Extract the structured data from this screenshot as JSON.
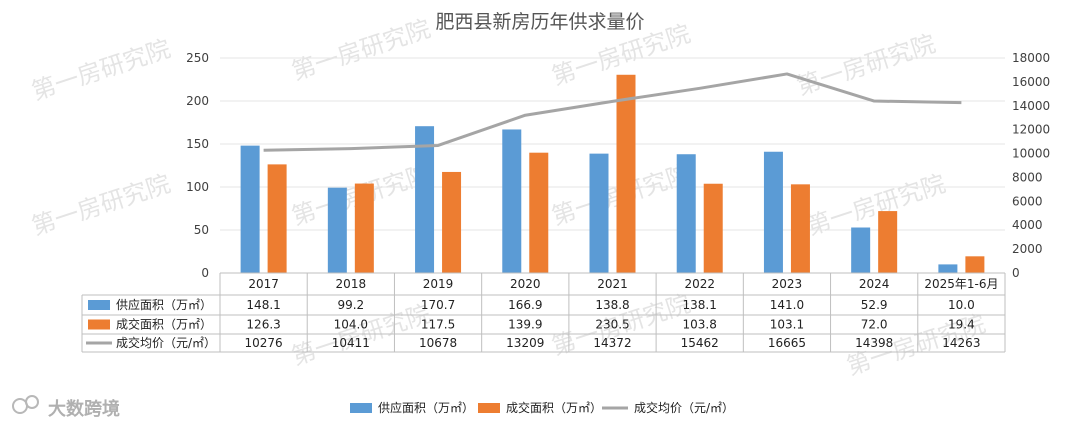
{
  "watermark": "第一房研究院",
  "brand": "大数跨境",
  "chart_data": {
    "type": "bar",
    "title": "肥西县新房历年供求量价",
    "categories": [
      "2017",
      "2018",
      "2019",
      "2020",
      "2021",
      "2022",
      "2023",
      "2024",
      "2025年1-6月"
    ],
    "series": [
      {
        "name": "供应面积（万㎡）",
        "type": "bar",
        "axis": "left",
        "color": "#5B9BD5",
        "values": [
          148.1,
          99.2,
          170.7,
          166.9,
          138.8,
          138.1,
          141.0,
          52.9,
          10.0
        ],
        "labels": [
          "148.1",
          "99.2",
          "170.7",
          "166.9",
          "138.8",
          "138.1",
          "141.0",
          "52.9",
          "10.0"
        ]
      },
      {
        "name": "成交面积（万㎡）",
        "type": "bar",
        "axis": "left",
        "color": "#ED7D31",
        "values": [
          126.3,
          104.0,
          117.5,
          139.9,
          230.5,
          103.8,
          103.1,
          72.0,
          19.4
        ],
        "labels": [
          "126.3",
          "104.0",
          "117.5",
          "139.9",
          "230.5",
          "103.8",
          "103.1",
          "72.0",
          "19.4"
        ]
      },
      {
        "name": "成交均价（元/㎡）",
        "type": "line",
        "axis": "right",
        "color": "#A5A5A5",
        "values": [
          10276,
          10411,
          10678,
          13209,
          14372,
          15462,
          16665,
          14398,
          14263
        ],
        "labels": [
          "10276",
          "10411",
          "10678",
          "13209",
          "14372",
          "15462",
          "16665",
          "14398",
          "14263"
        ]
      }
    ],
    "y_left": {
      "min": 0,
      "max": 250,
      "ticks": [
        0,
        50,
        100,
        150,
        200,
        250
      ]
    },
    "y_right": {
      "min": 0,
      "max": 18000,
      "ticks": [
        0,
        2000,
        4000,
        6000,
        8000,
        10000,
        12000,
        14000,
        16000,
        18000
      ]
    },
    "legend": "bottom",
    "data_table": true
  }
}
